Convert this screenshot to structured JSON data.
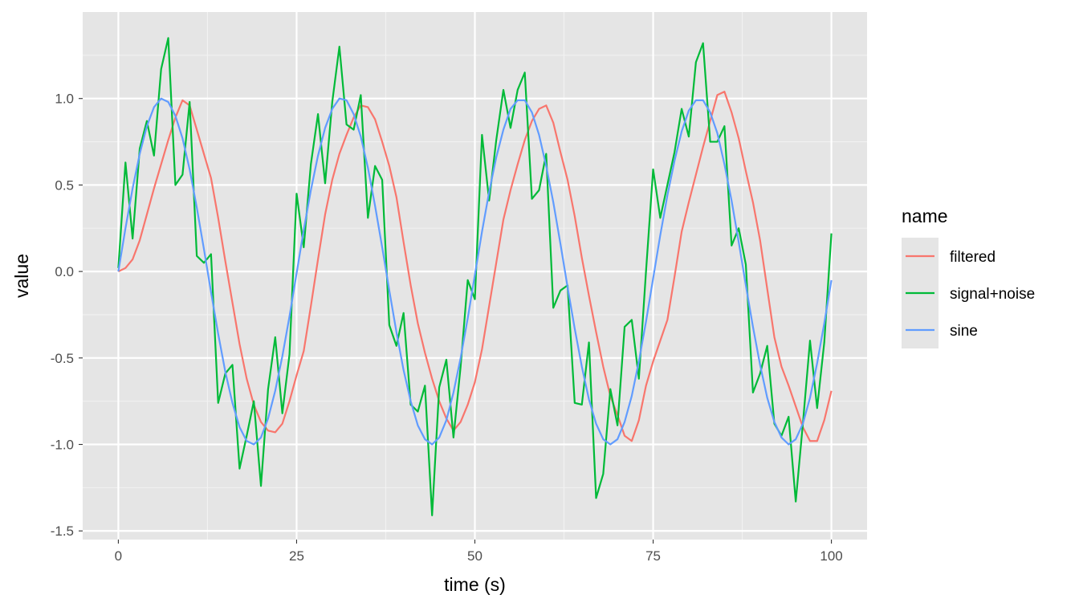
{
  "chart_data": {
    "type": "line",
    "xlabel": "time (s)",
    "ylabel": "value",
    "xlim": [
      -5,
      105
    ],
    "ylim": [
      -1.55,
      1.5
    ],
    "x_ticks": [
      0,
      25,
      50,
      75,
      100
    ],
    "x_tick_labels": [
      "0",
      "25",
      "50",
      "75",
      "100"
    ],
    "y_ticks": [
      -1.5,
      -1.0,
      -0.5,
      0.0,
      0.5,
      1.0
    ],
    "y_tick_labels": [
      "-1.5",
      "-1.0",
      "-0.5",
      "0.0",
      "0.5",
      "1.0"
    ],
    "grid": true,
    "background": "#e5e5e5",
    "legend": {
      "title": "name",
      "position": "right"
    },
    "series": [
      {
        "name": "filtered",
        "color": "#f8766d",
        "x": [
          0,
          1,
          2,
          3,
          4,
          5,
          6,
          7,
          8,
          9,
          10,
          11,
          12,
          13,
          14,
          15,
          16,
          17,
          18,
          19,
          20,
          21,
          22,
          23,
          24,
          25,
          26,
          27,
          28,
          29,
          30,
          31,
          32,
          33,
          34,
          35,
          36,
          37,
          38,
          39,
          40,
          41,
          42,
          43,
          44,
          45,
          46,
          47,
          48,
          49,
          50,
          51,
          52,
          53,
          54,
          55,
          56,
          57,
          58,
          59,
          60,
          61,
          62,
          63,
          64,
          65,
          66,
          67,
          68,
          69,
          70,
          71,
          72,
          73,
          74,
          75,
          76,
          77,
          78,
          79,
          80,
          81,
          82,
          83,
          84,
          85,
          86,
          87,
          88,
          89,
          90,
          91,
          92,
          93,
          94,
          95,
          96,
          97,
          98,
          99,
          100
        ],
        "values": [
          0.0,
          0.02,
          0.07,
          0.18,
          0.33,
          0.48,
          0.62,
          0.76,
          0.89,
          0.99,
          0.96,
          0.82,
          0.68,
          0.54,
          0.31,
          0.06,
          -0.18,
          -0.42,
          -0.62,
          -0.77,
          -0.87,
          -0.92,
          -0.93,
          -0.88,
          -0.75,
          -0.6,
          -0.46,
          -0.2,
          0.07,
          0.33,
          0.53,
          0.68,
          0.79,
          0.89,
          0.96,
          0.95,
          0.88,
          0.75,
          0.61,
          0.43,
          0.17,
          -0.08,
          -0.3,
          -0.47,
          -0.62,
          -0.75,
          -0.85,
          -0.92,
          -0.87,
          -0.77,
          -0.64,
          -0.45,
          -0.2,
          0.05,
          0.3,
          0.47,
          0.62,
          0.76,
          0.87,
          0.94,
          0.96,
          0.86,
          0.69,
          0.53,
          0.32,
          0.08,
          -0.14,
          -0.35,
          -0.55,
          -0.72,
          -0.83,
          -0.95,
          -0.98,
          -0.86,
          -0.66,
          -0.52,
          -0.4,
          -0.28,
          -0.03,
          0.23,
          0.4,
          0.56,
          0.72,
          0.87,
          1.02,
          1.04,
          0.92,
          0.77,
          0.58,
          0.4,
          0.18,
          -0.1,
          -0.38,
          -0.55,
          -0.66,
          -0.78,
          -0.9,
          -0.98,
          -0.98,
          -0.86,
          -0.69
        ]
      },
      {
        "name": "signal+noise",
        "color": "#00ba38",
        "x": [
          0,
          1,
          2,
          3,
          4,
          5,
          6,
          7,
          8,
          9,
          10,
          11,
          12,
          13,
          14,
          15,
          16,
          17,
          18,
          19,
          20,
          21,
          22,
          23,
          24,
          25,
          26,
          27,
          28,
          29,
          30,
          31,
          32,
          33,
          34,
          35,
          36,
          37,
          38,
          39,
          40,
          41,
          42,
          43,
          44,
          45,
          46,
          47,
          48,
          49,
          50,
          51,
          52,
          53,
          54,
          55,
          56,
          57,
          58,
          59,
          60,
          61,
          62,
          63,
          64,
          65,
          66,
          67,
          68,
          69,
          70,
          71,
          72,
          73,
          74,
          75,
          76,
          77,
          78,
          79,
          80,
          81,
          82,
          83,
          84,
          85,
          86,
          87,
          88,
          89,
          90,
          91,
          92,
          93,
          94,
          95,
          96,
          97,
          98,
          99,
          100
        ],
        "values": [
          0.02,
          0.63,
          0.19,
          0.71,
          0.87,
          0.67,
          1.17,
          1.35,
          0.5,
          0.56,
          0.98,
          0.09,
          0.05,
          0.1,
          -0.76,
          -0.59,
          -0.54,
          -1.14,
          -0.95,
          -0.75,
          -1.24,
          -0.68,
          -0.38,
          -0.82,
          -0.48,
          0.45,
          0.14,
          0.62,
          0.91,
          0.51,
          0.98,
          1.3,
          0.85,
          0.82,
          1.02,
          0.31,
          0.61,
          0.53,
          -0.31,
          -0.43,
          -0.24,
          -0.77,
          -0.81,
          -0.66,
          -1.41,
          -0.67,
          -0.51,
          -0.96,
          -0.55,
          -0.05,
          -0.16,
          0.79,
          0.41,
          0.76,
          1.05,
          0.83,
          1.05,
          1.15,
          0.42,
          0.47,
          0.68,
          -0.21,
          -0.11,
          -0.08,
          -0.76,
          -0.77,
          -0.41,
          -1.31,
          -1.17,
          -0.68,
          -0.89,
          -0.32,
          -0.28,
          -0.62,
          0.0,
          0.59,
          0.31,
          0.5,
          0.69,
          0.94,
          0.78,
          1.21,
          1.32,
          0.75,
          0.75,
          0.84,
          0.15,
          0.25,
          0.04,
          -0.7,
          -0.59,
          -0.43,
          -0.88,
          -0.95,
          -0.84,
          -1.33,
          -0.88,
          -0.4,
          -0.79,
          -0.41,
          0.22
        ]
      },
      {
        "name": "sine",
        "color": "#619cff",
        "x": [
          0,
          1,
          2,
          3,
          4,
          5,
          6,
          7,
          8,
          9,
          10,
          11,
          12,
          13,
          14,
          15,
          16,
          17,
          18,
          19,
          20,
          21,
          22,
          23,
          24,
          25,
          26,
          27,
          28,
          29,
          30,
          31,
          32,
          33,
          34,
          35,
          36,
          37,
          38,
          39,
          40,
          41,
          42,
          43,
          44,
          45,
          46,
          47,
          48,
          49,
          50,
          51,
          52,
          53,
          54,
          55,
          56,
          57,
          58,
          59,
          60,
          61,
          62,
          63,
          64,
          65,
          66,
          67,
          68,
          69,
          70,
          71,
          72,
          73,
          74,
          75,
          76,
          77,
          78,
          79,
          80,
          81,
          82,
          83,
          84,
          85,
          86,
          87,
          88,
          89,
          90,
          91,
          92,
          93,
          94,
          95,
          96,
          97,
          98,
          99,
          100
        ],
        "values": [
          0.0,
          0.25,
          0.48,
          0.68,
          0.84,
          0.95,
          1.0,
          0.98,
          0.9,
          0.77,
          0.59,
          0.37,
          0.13,
          -0.12,
          -0.36,
          -0.58,
          -0.76,
          -0.9,
          -0.98,
          -1.0,
          -0.96,
          -0.85,
          -0.69,
          -0.49,
          -0.26,
          -0.01,
          0.24,
          0.47,
          0.67,
          0.83,
          0.94,
          1.0,
          0.99,
          0.91,
          0.78,
          0.6,
          0.38,
          0.14,
          -0.11,
          -0.35,
          -0.57,
          -0.75,
          -0.89,
          -0.97,
          -1.0,
          -0.96,
          -0.86,
          -0.7,
          -0.5,
          -0.27,
          -0.02,
          0.23,
          0.46,
          0.66,
          0.82,
          0.94,
          0.99,
          0.99,
          0.92,
          0.79,
          0.61,
          0.4,
          0.16,
          -0.09,
          -0.33,
          -0.55,
          -0.74,
          -0.88,
          -0.97,
          -1.0,
          -0.97,
          -0.87,
          -0.72,
          -0.52,
          -0.29,
          -0.04,
          0.21,
          0.44,
          0.64,
          0.81,
          0.93,
          0.99,
          0.99,
          0.92,
          0.8,
          0.62,
          0.41,
          0.17,
          -0.08,
          -0.32,
          -0.54,
          -0.73,
          -0.87,
          -0.96,
          -1.0,
          -0.97,
          -0.88,
          -0.73,
          -0.53,
          -0.3,
          -0.05
        ]
      }
    ]
  }
}
